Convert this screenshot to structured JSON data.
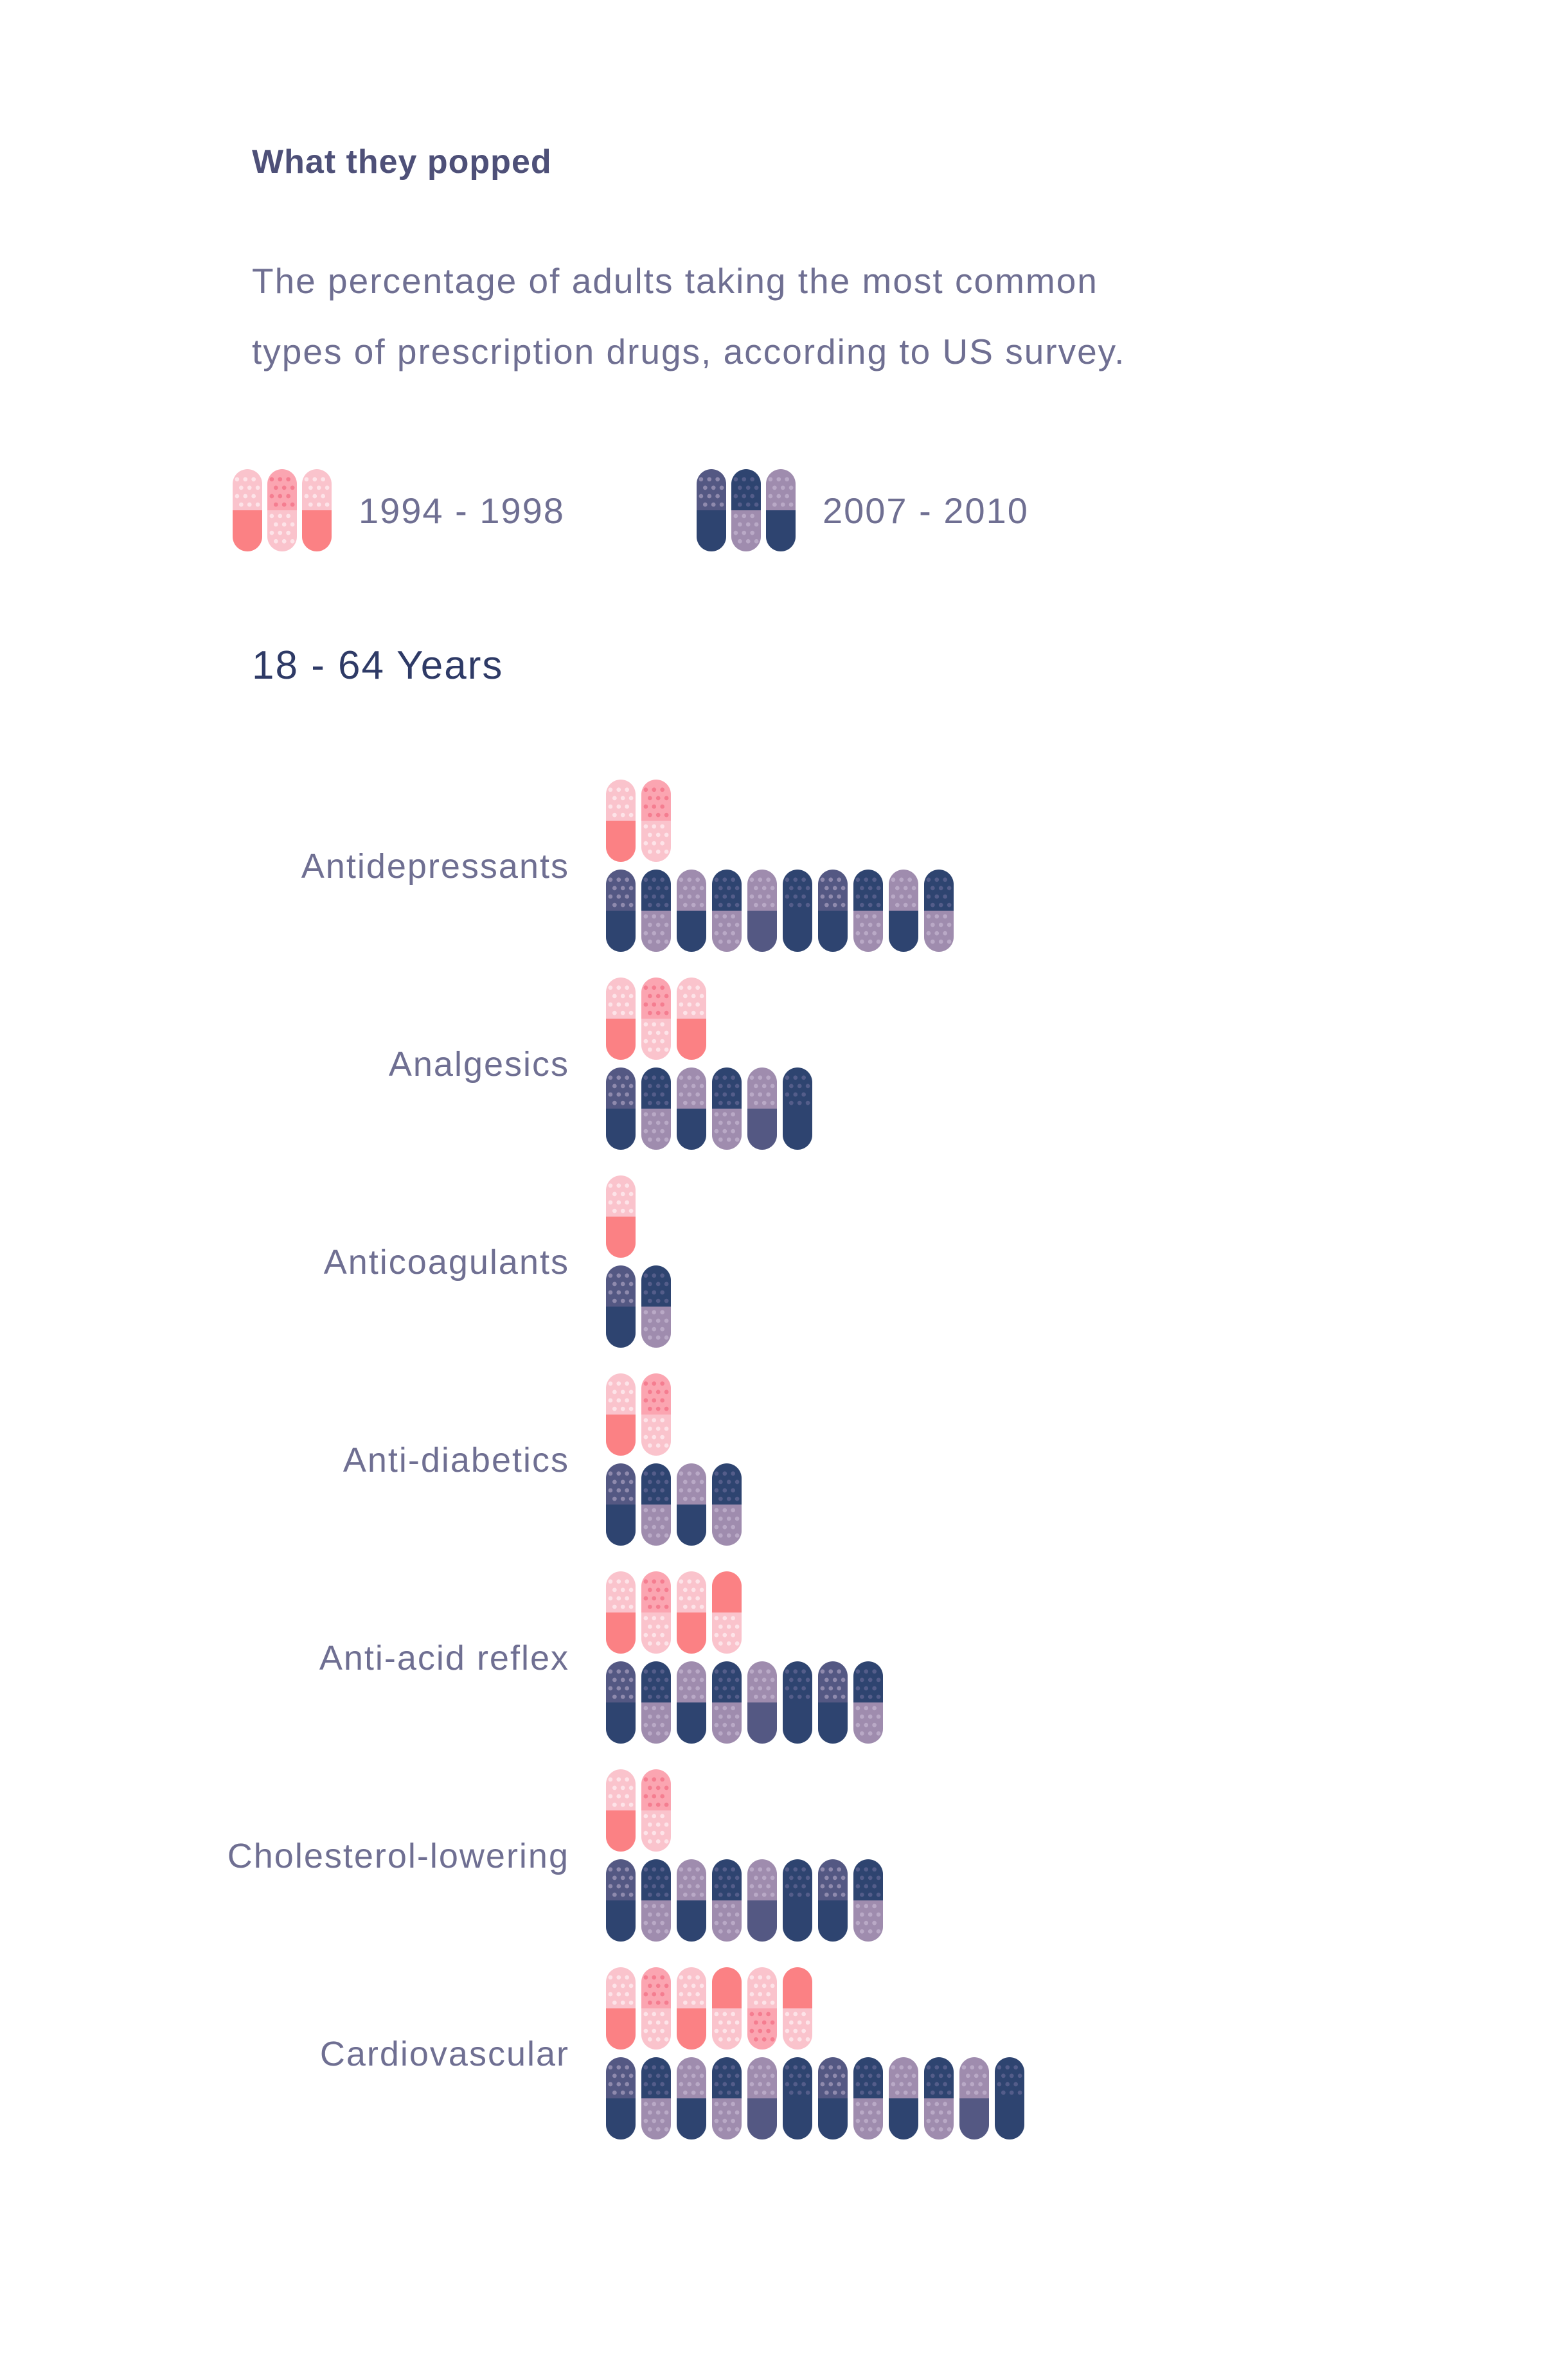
{
  "title": "What they popped",
  "subtitle_line1": "The percentage of adults taking the most common",
  "subtitle_line2": "types of prescription drugs, according to US survey.",
  "section_title": "18 - 64 Years",
  "chart_data": {
    "type": "pictogram-bar",
    "series": [
      {
        "name": "1994 - 1998",
        "values": [
          2,
          3,
          1,
          2,
          4,
          2,
          6
        ]
      },
      {
        "name": "2007 - 2010",
        "values": [
          10,
          6,
          2,
          4,
          8,
          8,
          12
        ]
      }
    ],
    "categories": [
      "Antidepressants",
      "Analgesics",
      "Anticoagulants",
      "Anti-diabetics",
      "Anti-acid reflex",
      "Cholesterol-lowering",
      "Cardiovascular"
    ],
    "legend_placement": "top-left",
    "grid": false
  },
  "colors": {
    "series1_solid": "#fb8184",
    "series1_light": "#fac3cc",
    "series1_mid": "#fba5b1",
    "series2_dark": "#2e4470",
    "series2_mid": "#545883",
    "series2_light": "#9f8cae",
    "text": "#6f6f92"
  },
  "icons": {
    "unit": "capsule-icon"
  }
}
